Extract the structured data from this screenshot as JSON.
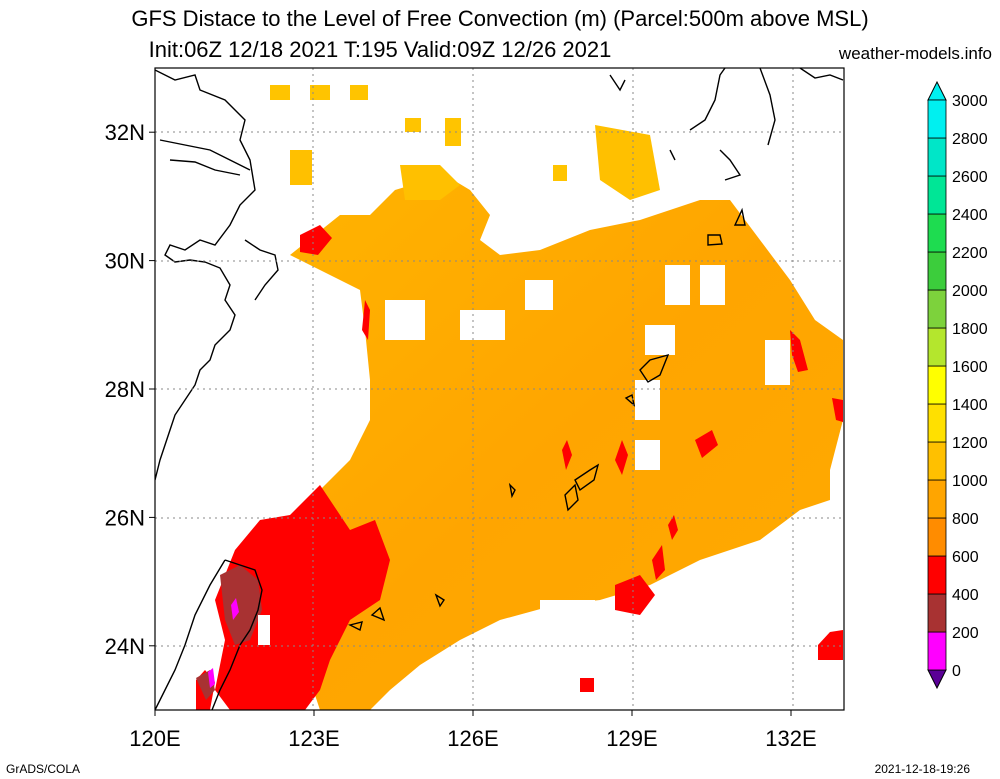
{
  "header": {
    "title_line1": "GFS Distace to the Level of Free Convection (m) (Parcel:500m above MSL)",
    "title_line2": "Init:06Z 12/18 2021 T:195 Valid:09Z 12/26 2021",
    "site": "weather-models.info"
  },
  "footer": {
    "left": "GrADS/COLA",
    "right": "2021-12-18-19:26"
  },
  "map": {
    "lon_ticks": [
      "120E",
      "123E",
      "126E",
      "129E",
      "132E"
    ],
    "lat_ticks": [
      "32N",
      "30N",
      "28N",
      "26N",
      "24N"
    ],
    "lon_range": [
      120,
      133
    ],
    "lat_range": [
      23,
      33
    ],
    "grid": true
  },
  "colorbar": {
    "labels": [
      "0",
      "200",
      "400",
      "600",
      "800",
      "1000",
      "1200",
      "1400",
      "1600",
      "1800",
      "2000",
      "2200",
      "2400",
      "2600",
      "2800",
      "3000"
    ],
    "colors": [
      "#5a0096",
      "#ff00ff",
      "#a83232",
      "#ff0000",
      "#ff8c00",
      "#ffa500",
      "#ffc000",
      "#ffe000",
      "#ffff00",
      "#b4e62d",
      "#7dd23c",
      "#3ccd3c",
      "#1edc50",
      "#00e696",
      "#00e6c8",
      "#00f0f0"
    ]
  },
  "palette": {
    "deep_red": "#ff0000",
    "brown": "#a83232",
    "magenta": "#ff00ff",
    "orange": "#ffa500",
    "light_orange": "#ffb400",
    "yellow_orange": "#ffc400"
  }
}
